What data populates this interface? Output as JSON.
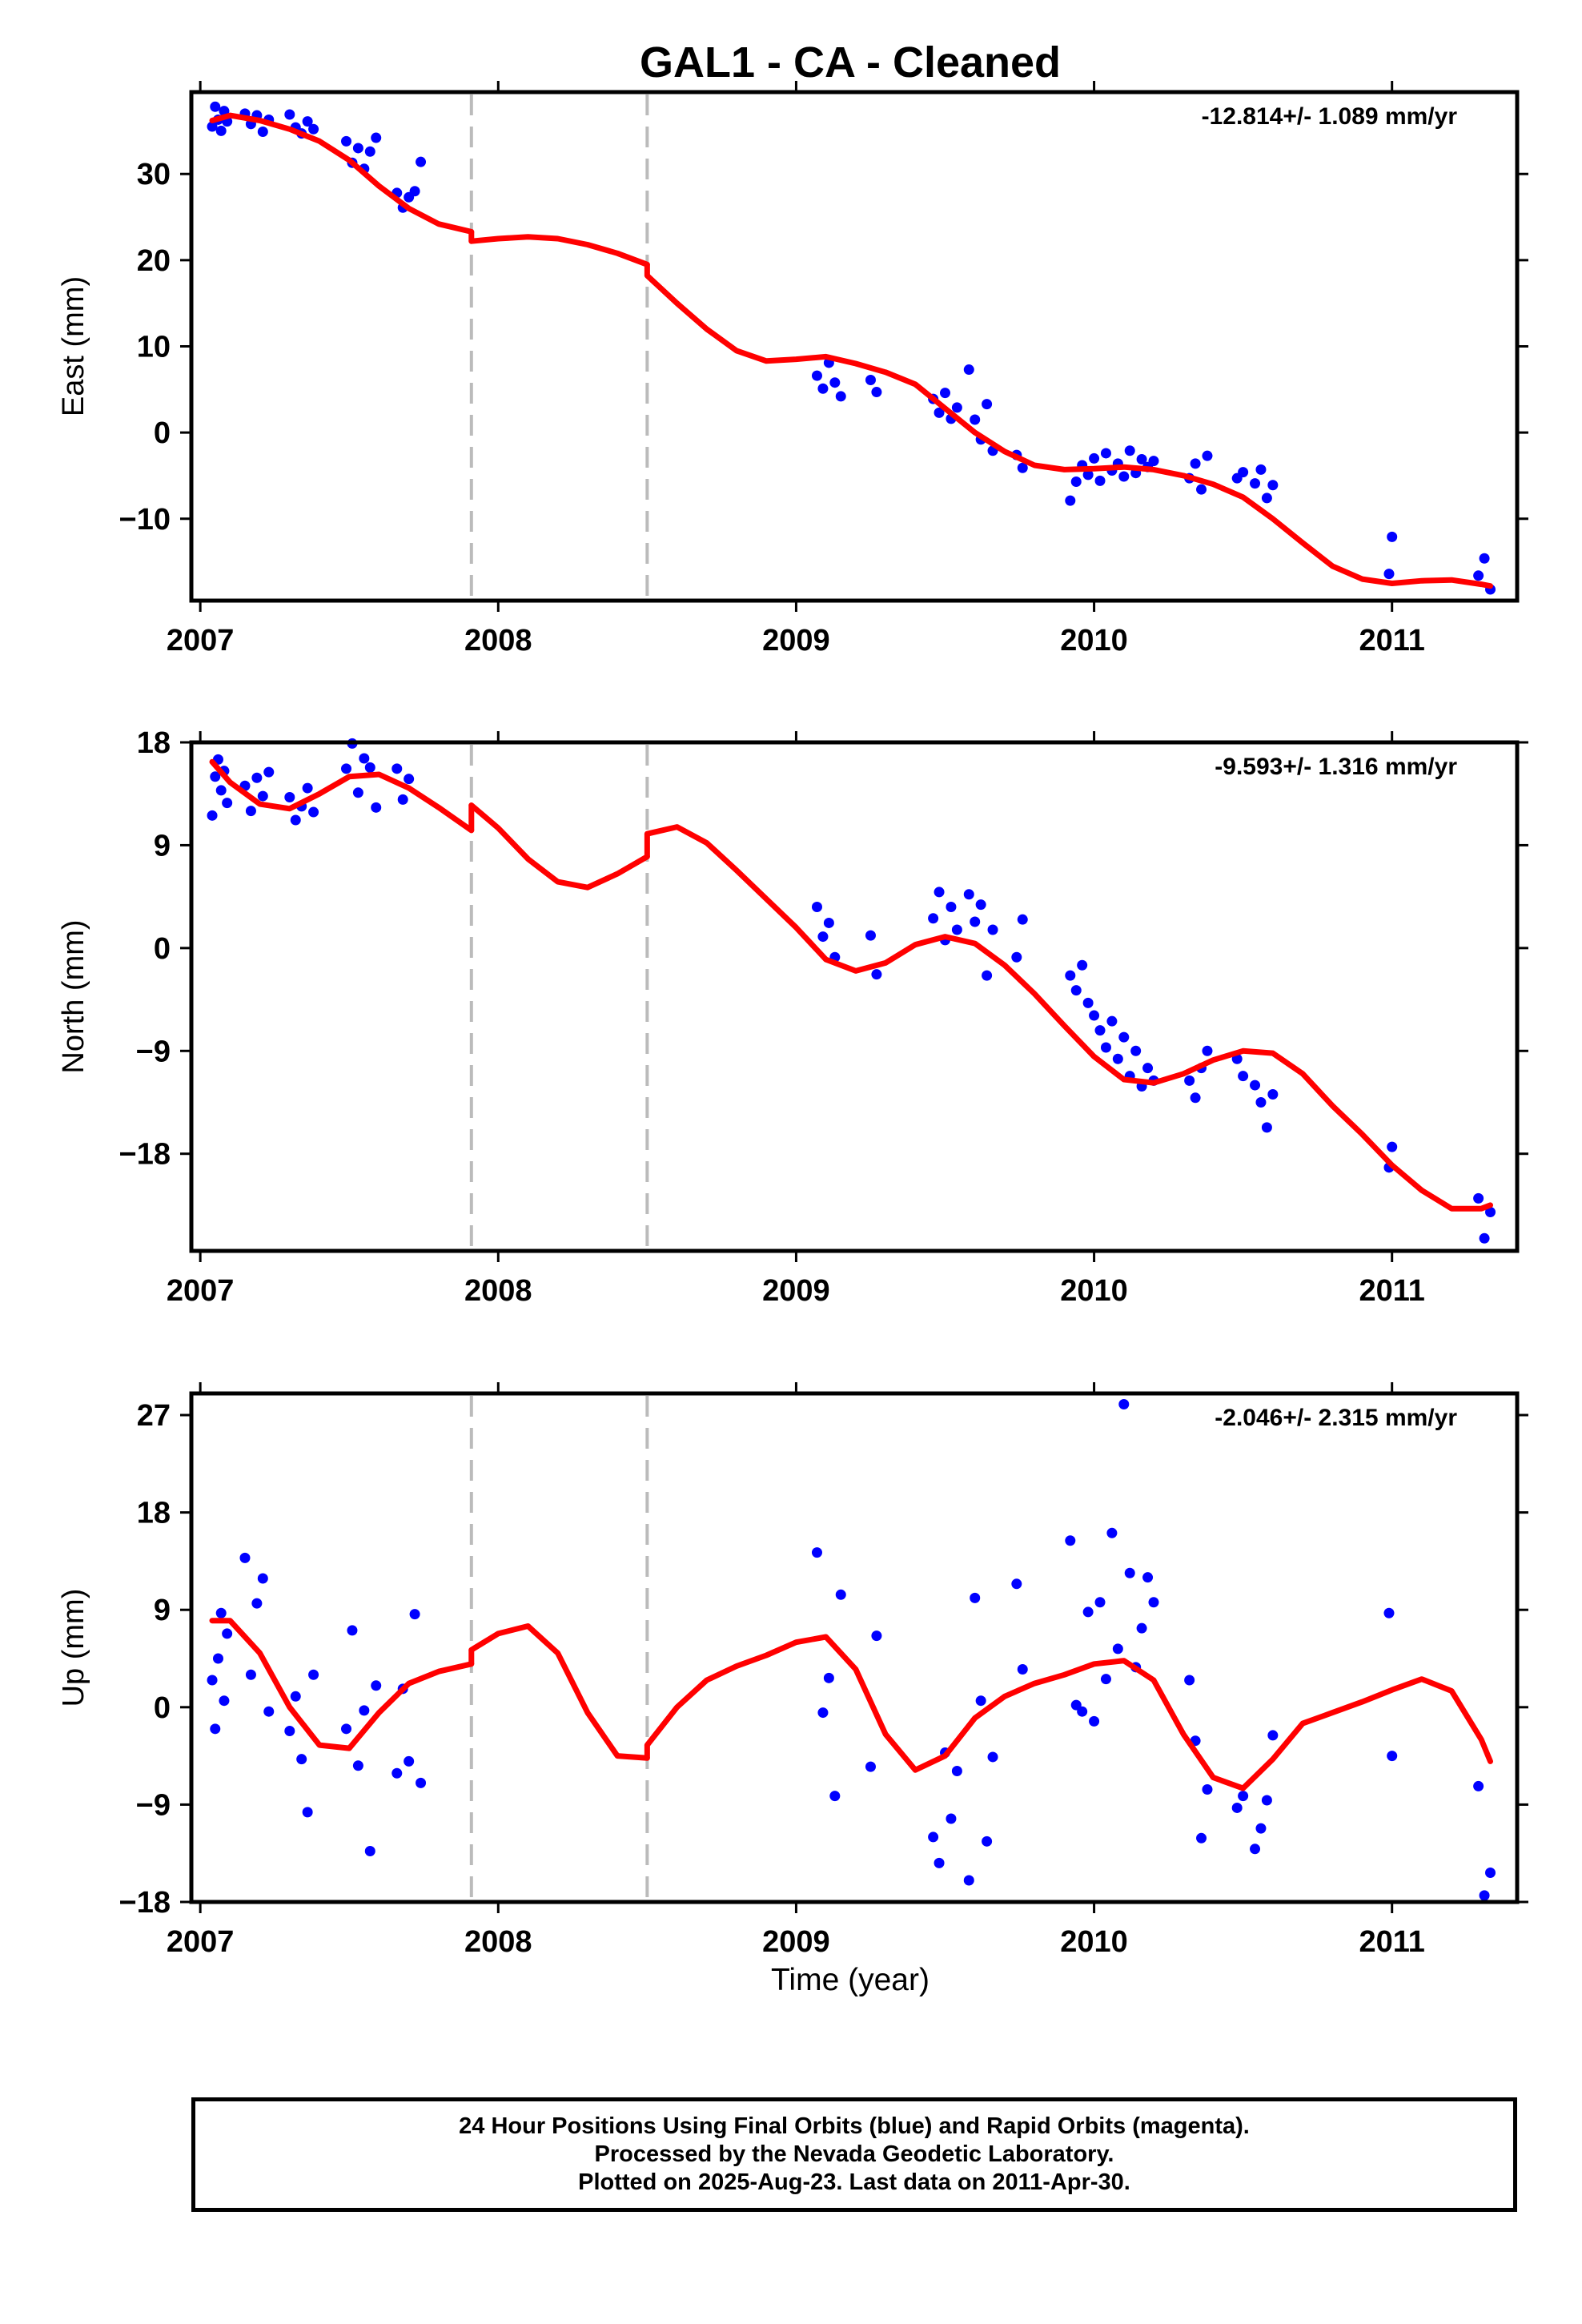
{
  "title": "GAL1  - CA - Cleaned",
  "xlabel": "Time (year)",
  "footer": {
    "line1": "24 Hour Positions Using Final Orbits (blue) and Rapid Orbits (magenta).",
    "line2": "Processed by the Nevada Geodetic Laboratory.",
    "line3": "Plotted on 2025-Aug-23. Last data on 2011-Apr-30."
  },
  "colors": {
    "points": "#0000ff",
    "model": "#ff0000",
    "breaks": "#bbbbbb",
    "frame": "#000000"
  },
  "chart_data": [
    {
      "type": "scatter",
      "panel": "east",
      "ylabel": "East (mm)",
      "rate_label": "-12.814+/- 1.089 mm/yr",
      "xlim": [
        2006.97,
        2011.42
      ],
      "ylim": [
        -19.5,
        39.5
      ],
      "xticks": [
        2007,
        2008,
        2009,
        2010,
        2011
      ],
      "yticks": [
        -10,
        0,
        10,
        20,
        30
      ],
      "ytick_labels": [
        "−10",
        "0",
        "10",
        "20",
        "30"
      ],
      "breaks": [
        2007.91,
        2008.5
      ],
      "model_series": [
        {
          "x": [
            2007.04,
            2007.1,
            2007.2,
            2007.3,
            2007.4,
            2007.5,
            2007.6,
            2007.7,
            2007.8,
            2007.91
          ],
          "y": [
            36.2,
            36.8,
            36.2,
            35.2,
            33.8,
            31.6,
            28.6,
            26.0,
            24.2,
            23.3
          ]
        },
        {
          "x": [
            2007.91,
            2008.0,
            2008.1,
            2008.2,
            2008.3,
            2008.4,
            2008.5
          ],
          "y": [
            22.2,
            22.5,
            22.7,
            22.5,
            21.8,
            20.8,
            19.5
          ]
        },
        {
          "x": [
            2008.5,
            2008.6,
            2008.7,
            2008.8,
            2008.9,
            2009.0,
            2009.1,
            2009.2,
            2009.3,
            2009.4,
            2009.5,
            2009.6,
            2009.7,
            2009.8,
            2009.9,
            2010.0,
            2010.1,
            2010.2,
            2010.3,
            2010.4,
            2010.5,
            2010.6,
            2010.7,
            2010.8,
            2010.9,
            2011.0,
            2011.1,
            2011.2,
            2011.3,
            2011.33
          ],
          "y": [
            18.2,
            15.0,
            12.0,
            9.5,
            8.3,
            8.5,
            8.8,
            8.0,
            7.0,
            5.6,
            2.8,
            0.0,
            -2.2,
            -3.8,
            -4.3,
            -4.2,
            -4.0,
            -4.3,
            -5.0,
            -6.0,
            -7.5,
            -10.0,
            -12.8,
            -15.5,
            -17.0,
            -17.5,
            -17.2,
            -17.1,
            -17.6,
            -17.8
          ]
        }
      ],
      "points": {
        "x": [
          2007.04,
          2007.05,
          2007.06,
          2007.07,
          2007.08,
          2007.09,
          2007.15,
          2007.17,
          2007.19,
          2007.21,
          2007.23,
          2007.3,
          2007.32,
          2007.34,
          2007.36,
          2007.38,
          2007.49,
          2007.51,
          2007.53,
          2007.55,
          2007.57,
          2007.59,
          2007.66,
          2007.68,
          2007.7,
          2007.72,
          2007.74,
          2009.07,
          2009.09,
          2009.11,
          2009.13,
          2009.15,
          2009.25,
          2009.27,
          2009.46,
          2009.48,
          2009.5,
          2009.52,
          2009.54,
          2009.58,
          2009.6,
          2009.62,
          2009.64,
          2009.66,
          2009.74,
          2009.76,
          2009.92,
          2009.94,
          2009.96,
          2009.98,
          2010.0,
          2010.02,
          2010.04,
          2010.06,
          2010.08,
          2010.1,
          2010.12,
          2010.14,
          2010.16,
          2010.18,
          2010.2,
          2010.32,
          2010.34,
          2010.36,
          2010.38,
          2010.48,
          2010.5,
          2010.54,
          2010.56,
          2010.58,
          2010.6,
          2010.99,
          2011.0,
          2011.29,
          2011.31,
          2011.33
        ],
        "y": [
          35.5,
          37.8,
          36.3,
          35.0,
          37.3,
          36.1,
          37.0,
          35.8,
          36.8,
          34.9,
          36.3,
          36.9,
          35.4,
          34.7,
          36.1,
          35.2,
          33.8,
          31.3,
          33.0,
          30.6,
          32.6,
          34.2,
          27.8,
          26.1,
          27.3,
          28.0,
          31.4,
          6.6,
          5.1,
          8.1,
          5.8,
          4.2,
          6.1,
          4.7,
          3.9,
          2.3,
          4.6,
          1.6,
          2.9,
          7.3,
          1.5,
          -0.8,
          3.3,
          -2.1,
          -2.6,
          -4.1,
          -7.9,
          -5.7,
          -3.8,
          -4.9,
          -3.0,
          -5.6,
          -2.4,
          -4.4,
          -3.6,
          -5.1,
          -2.1,
          -4.7,
          -3.1,
          -4.0,
          -3.3,
          -5.3,
          -3.6,
          -6.6,
          -2.7,
          -5.3,
          -4.6,
          -5.9,
          -4.3,
          -7.6,
          -6.1,
          -16.4,
          -12.1,
          -16.6,
          -14.6,
          -18.2
        ]
      }
    },
    {
      "type": "scatter",
      "panel": "north",
      "ylabel": "North (mm)",
      "rate_label": "-9.593+/- 1.316 mm/yr",
      "xlim": [
        2006.97,
        2011.42
      ],
      "ylim": [
        -26.5,
        18.0
      ],
      "xticks": [
        2007,
        2008,
        2009,
        2010,
        2011
      ],
      "yticks": [
        -18,
        -9,
        0,
        9,
        18
      ],
      "ytick_labels": [
        "−18",
        "−9",
        "0",
        "9",
        "18"
      ],
      "breaks": [
        2007.91,
        2008.5
      ],
      "model_series": [
        {
          "x": [
            2007.04,
            2007.1,
            2007.2,
            2007.3,
            2007.4,
            2007.5,
            2007.6,
            2007.7,
            2007.8,
            2007.91
          ],
          "y": [
            16.3,
            14.5,
            12.6,
            12.2,
            13.5,
            15.0,
            15.2,
            14.0,
            12.3,
            10.3
          ]
        },
        {
          "x": [
            2007.91,
            2008.0,
            2008.1,
            2008.2,
            2008.3,
            2008.4,
            2008.5
          ],
          "y": [
            12.5,
            10.5,
            7.8,
            5.8,
            5.3,
            6.5,
            8.0
          ]
        },
        {
          "x": [
            2008.5,
            2008.6,
            2008.7,
            2008.8,
            2008.9,
            2009.0,
            2009.1,
            2009.2,
            2009.3,
            2009.4,
            2009.5,
            2009.6,
            2009.7,
            2009.8,
            2009.9,
            2010.0,
            2010.1,
            2010.2,
            2010.3,
            2010.4,
            2010.5,
            2010.6,
            2010.7,
            2010.8,
            2010.9,
            2011.0,
            2011.1,
            2011.2,
            2011.3,
            2011.33
          ],
          "y": [
            10.0,
            10.6,
            9.2,
            6.8,
            4.3,
            1.8,
            -1.0,
            -2.0,
            -1.3,
            0.3,
            1.0,
            0.4,
            -1.5,
            -4.0,
            -6.8,
            -9.5,
            -11.5,
            -11.8,
            -11.0,
            -9.8,
            -9.0,
            -9.2,
            -11.0,
            -13.8,
            -16.3,
            -19.0,
            -21.2,
            -22.8,
            -22.8,
            -22.5
          ]
        }
      ],
      "points": {
        "x": [
          2007.04,
          2007.05,
          2007.06,
          2007.07,
          2007.08,
          2007.09,
          2007.15,
          2007.17,
          2007.19,
          2007.21,
          2007.23,
          2007.3,
          2007.32,
          2007.34,
          2007.36,
          2007.38,
          2007.49,
          2007.51,
          2007.53,
          2007.55,
          2007.57,
          2007.59,
          2007.66,
          2007.68,
          2007.7,
          2009.07,
          2009.09,
          2009.11,
          2009.13,
          2009.25,
          2009.27,
          2009.46,
          2009.48,
          2009.5,
          2009.52,
          2009.54,
          2009.58,
          2009.6,
          2009.62,
          2009.64,
          2009.66,
          2009.74,
          2009.76,
          2009.92,
          2009.94,
          2009.96,
          2009.98,
          2010.0,
          2010.02,
          2010.04,
          2010.06,
          2010.08,
          2010.1,
          2010.12,
          2010.14,
          2010.16,
          2010.18,
          2010.2,
          2010.32,
          2010.34,
          2010.36,
          2010.38,
          2010.48,
          2010.5,
          2010.54,
          2010.56,
          2010.58,
          2010.6,
          2010.99,
          2011.0,
          2011.29,
          2011.31,
          2011.33
        ],
        "y": [
          11.6,
          15.0,
          16.5,
          13.8,
          15.5,
          12.7,
          14.2,
          12.0,
          14.9,
          13.3,
          15.4,
          13.2,
          11.2,
          12.4,
          14.0,
          11.9,
          15.7,
          17.9,
          13.6,
          16.6,
          15.8,
          12.3,
          15.7,
          13.0,
          14.8,
          3.6,
          1.0,
          2.2,
          -0.8,
          1.1,
          -2.3,
          2.6,
          4.9,
          0.7,
          3.6,
          1.6,
          4.7,
          2.3,
          3.8,
          -2.4,
          1.6,
          -0.8,
          2.5,
          -2.4,
          -3.7,
          -1.5,
          -4.8,
          -5.9,
          -7.2,
          -8.7,
          -6.4,
          -9.7,
          -7.8,
          -11.2,
          -9.0,
          -12.1,
          -10.5,
          -11.6,
          -11.6,
          -13.1,
          -10.5,
          -9.0,
          -9.7,
          -11.2,
          -12.0,
          -13.5,
          -15.7,
          -12.8,
          -19.2,
          -17.4,
          -21.9,
          -25.4,
          -23.1
        ]
      }
    },
    {
      "type": "scatter",
      "panel": "up",
      "ylabel": "Up (mm)",
      "rate_label": "-2.046+/- 2.315 mm/yr",
      "xlim": [
        2006.97,
        2011.42
      ],
      "ylim": [
        -18.0,
        29.0
      ],
      "xticks": [
        2007,
        2008,
        2009,
        2010,
        2011
      ],
      "yticks": [
        -18,
        -9,
        0,
        9,
        18,
        27
      ],
      "ytick_labels": [
        "−18",
        "−9",
        "0",
        "9",
        "18",
        "27"
      ],
      "breaks": [
        2007.91,
        2008.5
      ],
      "model_series": [
        {
          "x": [
            2007.04,
            2007.1,
            2007.2,
            2007.3,
            2007.4,
            2007.5,
            2007.6,
            2007.7,
            2007.8,
            2007.91
          ],
          "y": [
            8.0,
            8.0,
            5.0,
            0.0,
            -3.5,
            -3.8,
            -0.5,
            2.2,
            3.3,
            4.0
          ]
        },
        {
          "x": [
            2007.91,
            2008.0,
            2008.1,
            2008.2,
            2008.3,
            2008.4,
            2008.5
          ],
          "y": [
            5.3,
            6.8,
            7.5,
            5.0,
            -0.5,
            -4.5,
            -4.7
          ]
        },
        {
          "x": [
            2008.5,
            2008.6,
            2008.7,
            2008.8,
            2008.9,
            2009.0,
            2009.1,
            2009.2,
            2009.3,
            2009.4,
            2009.5,
            2009.6,
            2009.7,
            2009.8,
            2009.9,
            2010.0,
            2010.1,
            2010.2,
            2010.3,
            2010.4,
            2010.5,
            2010.6,
            2010.7,
            2010.8,
            2010.9,
            2011.0,
            2011.1,
            2011.2,
            2011.3,
            2011.33
          ],
          "y": [
            -3.5,
            0.0,
            2.5,
            3.8,
            4.8,
            6.0,
            6.5,
            3.5,
            -2.5,
            -5.8,
            -4.5,
            -1.0,
            1.0,
            2.2,
            3.0,
            4.0,
            4.3,
            2.5,
            -2.5,
            -6.5,
            -7.5,
            -4.8,
            -1.5,
            -0.5,
            0.5,
            1.6,
            2.6,
            1.5,
            -3.0,
            -5.0
          ]
        }
      ],
      "points": {
        "x": [
          2007.04,
          2007.05,
          2007.06,
          2007.07,
          2007.08,
          2007.09,
          2007.15,
          2007.17,
          2007.19,
          2007.21,
          2007.23,
          2007.3,
          2007.32,
          2007.34,
          2007.36,
          2007.38,
          2007.49,
          2007.51,
          2007.53,
          2007.55,
          2007.57,
          2007.59,
          2007.66,
          2007.68,
          2007.7,
          2007.72,
          2007.74,
          2009.07,
          2009.09,
          2009.11,
          2009.13,
          2009.15,
          2009.25,
          2009.27,
          2009.46,
          2009.48,
          2009.5,
          2009.52,
          2009.54,
          2009.58,
          2009.6,
          2009.62,
          2009.64,
          2009.66,
          2009.74,
          2009.76,
          2009.92,
          2009.94,
          2009.96,
          2009.98,
          2010.0,
          2010.02,
          2010.04,
          2010.06,
          2010.08,
          2010.1,
          2010.12,
          2010.14,
          2010.16,
          2010.18,
          2010.2,
          2010.32,
          2010.34,
          2010.36,
          2010.38,
          2010.48,
          2010.5,
          2010.54,
          2010.56,
          2010.58,
          2010.6,
          2010.99,
          2011.0,
          2011.29,
          2011.31,
          2011.33
        ],
        "y": [
          2.5,
          -2.0,
          4.5,
          8.7,
          0.6,
          6.8,
          13.8,
          3.0,
          9.6,
          11.9,
          -0.4,
          -2.2,
          1.0,
          -4.8,
          -9.7,
          3.0,
          -2.0,
          7.1,
          -5.4,
          -0.3,
          -13.3,
          2.0,
          -6.1,
          1.7,
          -5.0,
          8.6,
          -7.0,
          14.3,
          -0.5,
          2.7,
          -8.2,
          10.4,
          -5.5,
          6.6,
          -12.0,
          -14.4,
          -4.2,
          -10.3,
          -5.9,
          -16.0,
          10.1,
          0.6,
          -12.4,
          -4.6,
          11.4,
          3.5,
          15.4,
          0.2,
          -0.4,
          8.8,
          -1.3,
          9.7,
          2.6,
          16.1,
          5.4,
          28.0,
          12.4,
          3.7,
          7.3,
          12.0,
          9.7,
          2.5,
          -3.1,
          -12.1,
          -7.6,
          -9.3,
          -8.2,
          -13.1,
          -11.2,
          -8.6,
          -2.6,
          8.7,
          -4.5,
          -7.3,
          -17.4,
          -15.3
        ]
      }
    }
  ]
}
